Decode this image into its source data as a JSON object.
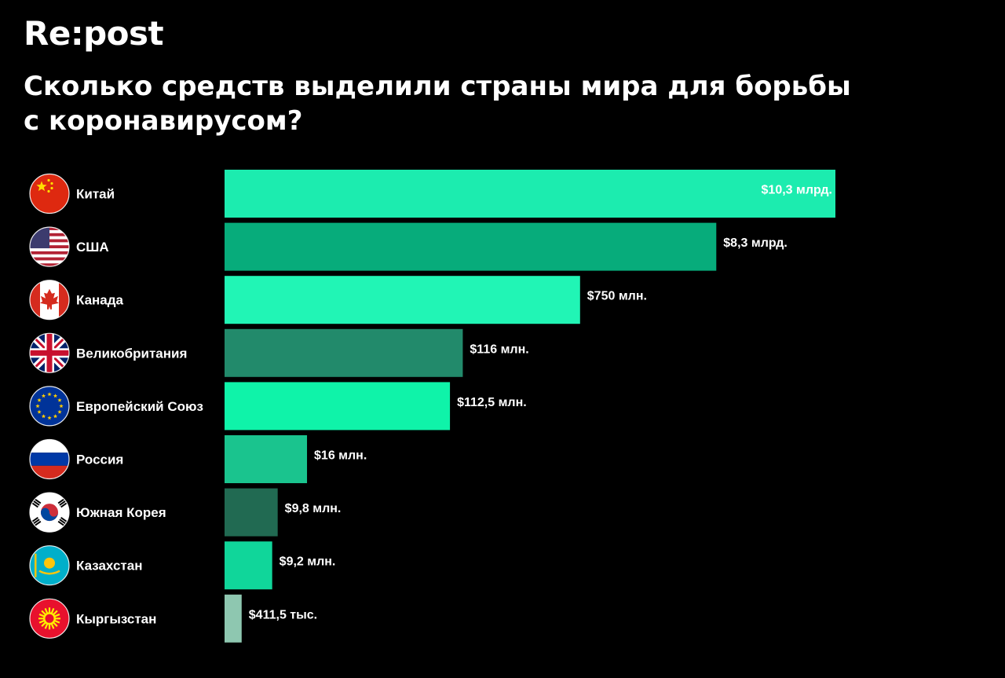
{
  "header": {
    "logo": "Re:post",
    "title_line1": "Сколько средств выделили страны мира для борьбы",
    "title_line2": "с коронавирусом?"
  },
  "chart_data": {
    "type": "bar",
    "orientation": "horizontal",
    "unit": "USD",
    "categories": [
      "Китай",
      "США",
      "Канада",
      "Великобритания",
      "Европейский Союз",
      "Россия",
      "Южная Корея",
      "Казахстан",
      "Кыргызстан"
    ],
    "values": [
      10300000000,
      8300000000,
      750000000,
      116000000,
      112500000,
      16000000,
      9800000,
      9200000,
      411500
    ],
    "value_labels": [
      "$10,3 млрд.",
      "$8,3 млрд.",
      "$750 млн.",
      "$116 млн.",
      "$112,5 млн.",
      "$16 млн.",
      "$9,8 млн.",
      "$9,2 млн.",
      "$411,5 тыс."
    ],
    "flag_icons": [
      "china-flag-icon",
      "usa-flag-icon",
      "canada-flag-icon",
      "uk-flag-icon",
      "eu-flag-icon",
      "russia-flag-icon",
      "south-korea-flag-icon",
      "kazakhstan-flag-icon",
      "kyrgyzstan-flag-icon"
    ],
    "bar_colors": [
      "#1cecaf",
      "#07ac7b",
      "#21f5b5",
      "#228a6b",
      "#0ff3a9",
      "#1ac48e",
      "#216a52",
      "#10d69a",
      "#8ec7b0"
    ],
    "bar_length_scale": "non-linear",
    "bar_length_share": [
      1.0,
      0.805,
      0.582,
      0.39,
      0.369,
      0.135,
      0.087,
      0.078,
      0.028
    ],
    "grid": false,
    "legend": "none"
  }
}
